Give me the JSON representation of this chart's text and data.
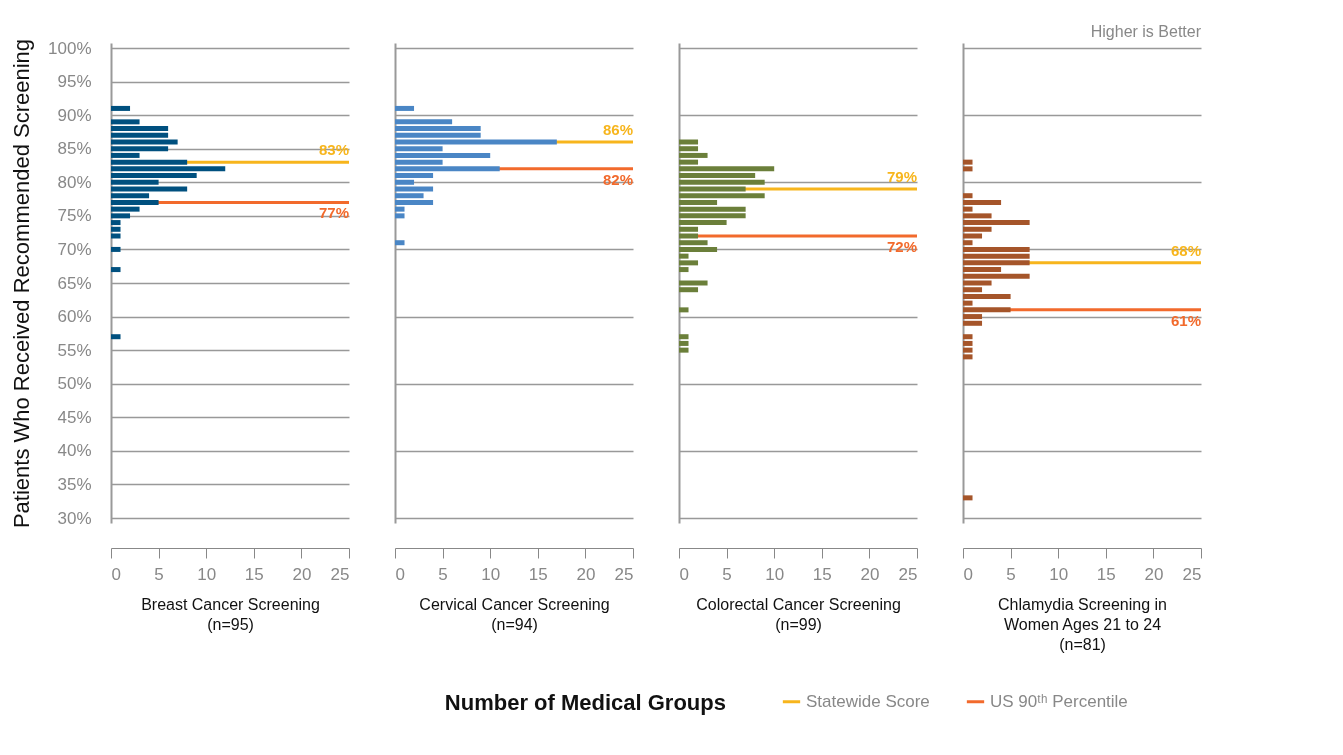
{
  "chart_data": [
    {
      "type": "bar",
      "orientation": "horizontal",
      "title": "Breast Cancer Screening\n(n=95)",
      "ylabel": "Patients Who Received Recommended Screening",
      "grid": "y",
      "x": [
        91,
        89,
        88,
        87,
        86,
        85,
        84,
        83,
        82,
        81,
        80,
        79,
        78,
        77,
        76,
        75,
        74,
        73,
        72,
        70,
        67,
        57
      ],
      "series": [
        {
          "color": "#00507f",
          "values": [
            2,
            3,
            6,
            6,
            7,
            6,
            3,
            8,
            12,
            9,
            5,
            8,
            4,
            5,
            3,
            2,
            1,
            1,
            1,
            1,
            1,
            1
          ]
        }
      ],
      "xlim": [
        0,
        25
      ],
      "xticks": [
        0,
        5,
        10,
        15,
        20,
        25
      ],
      "ylim": [
        30,
        100
      ],
      "yticks": [
        {
          "value": 30,
          "label": "30%"
        },
        {
          "value": 35,
          "label": "35%"
        },
        {
          "value": 40,
          "label": "40%"
        },
        {
          "value": 45,
          "label": "45%"
        },
        {
          "value": 50,
          "label": "50%"
        },
        {
          "value": 55,
          "label": "55%"
        },
        {
          "value": 60,
          "label": "60%"
        },
        {
          "value": 65,
          "label": "65%"
        },
        {
          "value": 70,
          "label": "70%"
        },
        {
          "value": 75,
          "label": "75%"
        },
        {
          "value": 80,
          "label": "80%"
        },
        {
          "value": 85,
          "label": "85%"
        },
        {
          "value": 90,
          "label": "90%"
        },
        {
          "value": 95,
          "label": "95%"
        },
        {
          "value": 100,
          "label": "100%"
        }
      ],
      "ref_lines": [
        {
          "axis": "y",
          "value": 83,
          "color": "#f7b51c"
        },
        {
          "axis": "y",
          "value": 77,
          "color": "#f26a2c"
        }
      ],
      "annotations": [
        {
          "text": "83%",
          "y": 83
        },
        {
          "text": "77%",
          "y": 77
        }
      ]
    },
    {
      "type": "bar",
      "orientation": "horizontal",
      "title": "Cervical Cancer Screening\n(n=94)",
      "xlabel": "Number of Medical Groups",
      "grid": "y",
      "tick_labels": "x",
      "x": [
        91,
        89,
        88,
        87,
        86,
        85,
        84,
        83,
        82,
        81,
        80,
        79,
        78,
        77,
        76,
        75,
        71
      ],
      "series": [
        {
          "color": "#4a86c5",
          "values": [
            2,
            6,
            9,
            9,
            17,
            5,
            10,
            5,
            11,
            4,
            2,
            4,
            3,
            4,
            1,
            1,
            1
          ]
        }
      ],
      "xlim": [
        0,
        25
      ],
      "xticks": [
        0,
        5,
        10,
        15,
        20,
        25
      ],
      "ylim": [
        30,
        100
      ],
      "yticks": [
        30,
        40,
        50,
        60,
        70,
        80,
        90,
        100
      ],
      "ref_lines": [
        {
          "axis": "y",
          "value": 86,
          "color": "#f7b51c"
        },
        {
          "axis": "y",
          "value": 82,
          "color": "#f26a2c"
        }
      ],
      "annotations": [
        {
          "text": "86%",
          "y": 86
        },
        {
          "text": "82%",
          "y": 82
        }
      ]
    },
    {
      "type": "bar",
      "orientation": "horizontal",
      "title": "Colorectal Cancer Screening\n(n=99)",
      "grid": "y",
      "tick_labels": "x",
      "x": [
        86,
        85,
        84,
        83,
        82,
        81,
        80,
        79,
        78,
        77,
        76,
        75,
        74,
        73,
        72,
        71,
        70,
        69,
        68,
        67,
        65,
        64,
        61,
        57,
        56,
        55
      ],
      "series": [
        {
          "color": "#6b7f3a",
          "values": [
            2,
            2,
            3,
            2,
            10,
            8,
            9,
            7,
            9,
            4,
            7,
            7,
            5,
            2,
            2,
            3,
            4,
            1,
            2,
            1,
            3,
            2,
            1,
            1,
            1,
            1
          ]
        }
      ],
      "xlim": [
        0,
        25
      ],
      "xticks": [
        0,
        5,
        10,
        15,
        20,
        25
      ],
      "ylim": [
        30,
        100
      ],
      "yticks": [
        30,
        40,
        50,
        60,
        70,
        80,
        90,
        100
      ],
      "ref_lines": [
        {
          "axis": "y",
          "value": 79,
          "color": "#f7b51c"
        },
        {
          "axis": "y",
          "value": 72,
          "color": "#f26a2c"
        }
      ],
      "annotations": [
        {
          "text": "79%",
          "y": 79
        },
        {
          "text": "72%",
          "y": 72
        }
      ]
    },
    {
      "type": "bar",
      "orientation": "horizontal",
      "title": "Chlamydia Screening in\nWomen Ages 21 to 24\n(n=81)",
      "grid": "y",
      "tick_labels": "x",
      "legend": "bottom",
      "x": [
        83,
        82,
        78,
        77,
        76,
        75,
        74,
        73,
        72,
        71,
        70,
        69,
        68,
        67,
        66,
        65,
        64,
        63,
        62,
        61,
        60,
        59,
        57,
        56,
        55,
        54,
        33
      ],
      "series": [
        {
          "color": "#a5552a",
          "values": [
            1,
            1,
            1,
            4,
            1,
            3,
            7,
            3,
            2,
            1,
            7,
            7,
            7,
            4,
            7,
            3,
            2,
            5,
            1,
            5,
            2,
            2,
            1,
            1,
            1,
            1,
            1
          ]
        }
      ],
      "xlim": [
        0,
        25
      ],
      "xticks": [
        0,
        5,
        10,
        15,
        20,
        25
      ],
      "ylim": [
        30,
        100
      ],
      "yticks": [
        30,
        40,
        50,
        60,
        70,
        80,
        90,
        100
      ],
      "ref_lines": [
        {
          "axis": "y",
          "value": 68,
          "color": "#f7b51c",
          "label": "Statewide Score"
        },
        {
          "axis": "y",
          "value": 61,
          "color": "#f26a2c",
          "label": "US 90ᵗʰ Percentile"
        }
      ],
      "annotations": [
        "Higher is Better",
        {
          "text": "68%",
          "y": 68
        },
        {
          "text": "61%",
          "y": 61
        }
      ]
    }
  ]
}
